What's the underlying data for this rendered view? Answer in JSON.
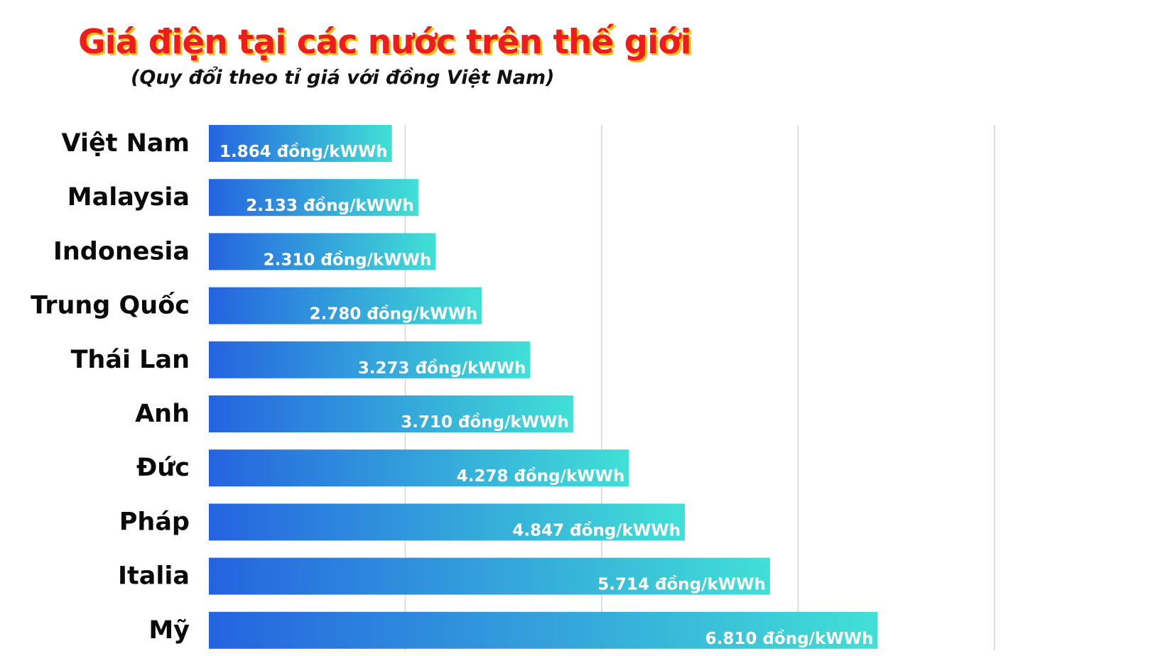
{
  "header": {
    "title": "Giá điện tại các nước trên thế giới",
    "subtitle": "(Quy đổi theo tỉ giá với đồng Việt Nam)"
  },
  "colors": {
    "title": "#ee1c1c",
    "title_shadow": "#f6c21c",
    "bar_start": "#2563e0",
    "bar_end": "#41e0d6",
    "label": "#0a0a0a",
    "gridline": "#d4d4d4"
  },
  "chart_data": {
    "type": "bar",
    "orientation": "horizontal",
    "title": "Giá điện tại các nước trên thế giới",
    "subtitle": "(Quy đổi theo tỉ giá với đồng Việt Nam)",
    "categories": [
      "Việt Nam",
      "Malaysia",
      "Indonesia",
      "Trung Quốc",
      "Thái Lan",
      "Anh",
      "Đức",
      "Pháp",
      "Italia",
      "Mỹ"
    ],
    "values": [
      1864,
      2133,
      2310,
      2780,
      3273,
      3710,
      4278,
      4847,
      5714,
      6810
    ],
    "data_labels": [
      "1.864 đồng/kWWh",
      "2.133 đồng/kWWh",
      "2.310 đồng/kWWh",
      "2.780 đồng/kWWh",
      "3.273 đồng/kWWh",
      "3.710 đồng/kWWh",
      "4.278 đồng/kWWh",
      "4.847 đồng/kWWh",
      "5.714 đồng/kWWh",
      "6.810 đồng/kWWh"
    ],
    "xlim": [
      0,
      8000
    ],
    "gridlines": [
      2000,
      4000,
      6000,
      8000
    ],
    "grid": true,
    "legend": false,
    "xlabel": "",
    "ylabel": ""
  }
}
